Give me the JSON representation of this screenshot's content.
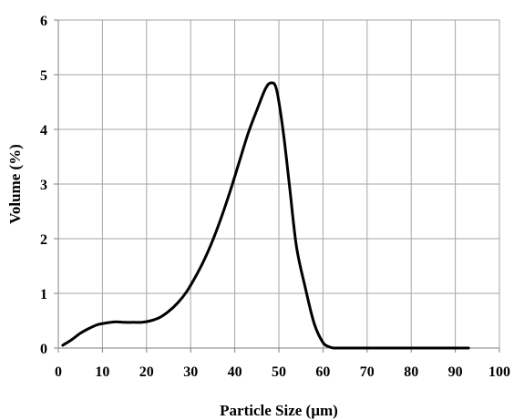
{
  "chart_data": {
    "type": "line",
    "title": "",
    "xlabel": "Particle Size (µm)",
    "ylabel": "Volume (%)",
    "xlim": [
      0,
      100
    ],
    "ylim": [
      0,
      6
    ],
    "xticks": [
      0,
      10,
      20,
      30,
      40,
      50,
      60,
      70,
      80,
      90,
      100
    ],
    "yticks": [
      0,
      1,
      2,
      3,
      4,
      5,
      6
    ],
    "grid": true,
    "legend": "none",
    "series": [
      {
        "color": "#000000",
        "x": [
          1,
          3,
          5,
          7,
          9,
          11,
          13,
          15,
          17,
          19,
          21,
          23,
          25,
          27,
          29,
          31,
          33,
          35,
          37,
          39,
          41,
          43,
          45,
          47,
          48.3,
          49.5,
          51,
          52.5,
          54,
          56,
          58,
          60,
          61.5,
          62.5,
          64,
          70,
          80,
          93
        ],
        "y": [
          0.05,
          0.15,
          0.27,
          0.36,
          0.43,
          0.46,
          0.48,
          0.47,
          0.47,
          0.47,
          0.5,
          0.56,
          0.67,
          0.82,
          1.02,
          1.29,
          1.6,
          1.97,
          2.4,
          2.88,
          3.4,
          3.92,
          4.35,
          4.75,
          4.85,
          4.72,
          3.95,
          2.9,
          1.85,
          1.1,
          0.45,
          0.1,
          0.02,
          0.0,
          0.0,
          0.0,
          0.0,
          0.0
        ]
      }
    ]
  }
}
